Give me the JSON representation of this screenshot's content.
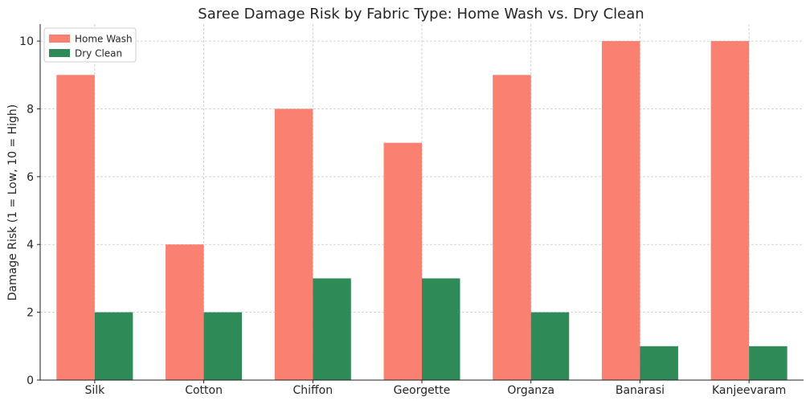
{
  "chart_data": {
    "type": "bar",
    "title": "Saree Damage Risk by Fabric Type: Home Wash vs. Dry Clean",
    "xlabel": "",
    "ylabel": "Damage Risk (1 = Low, 10 = High)",
    "categories": [
      "Silk",
      "Cotton",
      "Chiffon",
      "Georgette",
      "Organza",
      "Banarasi",
      "Kanjeevaram"
    ],
    "series": [
      {
        "name": "Home Wash",
        "color": "#fa8072",
        "values": [
          9,
          4,
          8,
          7,
          9,
          10,
          10
        ]
      },
      {
        "name": "Dry Clean",
        "color": "#2e8b57",
        "values": [
          2,
          2,
          3,
          3,
          2,
          1,
          1
        ]
      }
    ],
    "ylim": [
      0,
      10.5
    ],
    "yticks": [
      "0",
      "2",
      "4",
      "6",
      "8",
      "10"
    ],
    "grid": true,
    "legend_position": "top-left"
  }
}
